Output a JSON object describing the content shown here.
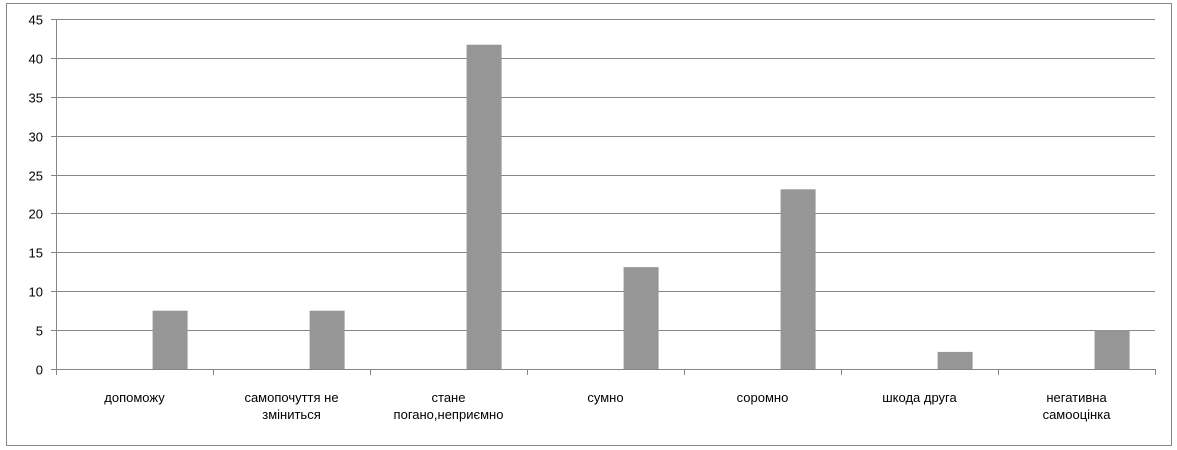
{
  "chart_data": {
    "type": "bar",
    "categories": [
      [
        "допоможу"
      ],
      [
        "самопочуття не",
        "зміниться"
      ],
      [
        "стане",
        "погано,неприємно"
      ],
      [
        "сумно"
      ],
      [
        "соромно"
      ],
      [
        "шкода друга"
      ],
      [
        "негативна",
        "самооцінка"
      ]
    ],
    "values": [
      7.5,
      7.5,
      41.7,
      13.1,
      23.1,
      2.2,
      5.0
    ],
    "title": "",
    "xlabel": "",
    "ylabel": "",
    "ylim": [
      0,
      45
    ],
    "yticks": [
      0,
      5,
      10,
      15,
      20,
      25,
      30,
      35,
      40,
      45
    ],
    "grid": true,
    "legend": "none",
    "colors": {
      "bar": "#969696",
      "grid": "#868686",
      "axis": "#868686",
      "frame": "#868686"
    }
  }
}
